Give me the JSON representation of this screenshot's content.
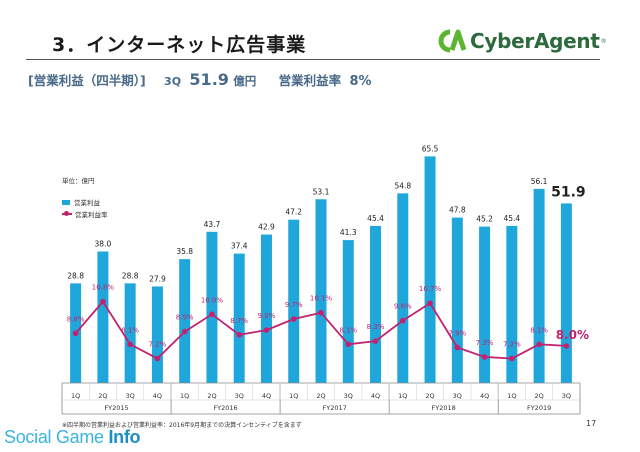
{
  "header": {
    "title": "3．インターネット広告事業",
    "logo_text": "CyberAgent",
    "logo_reg": "®"
  },
  "subheading": {
    "label": "[営業利益（四半期）]",
    "quarter": "3Q",
    "value": "51.9",
    "unit": "億円",
    "rate_label": "営業利益率",
    "rate": "8%"
  },
  "colors": {
    "bar": "#1fa7db",
    "line": "#c2226e",
    "accent_text": "#c2226e"
  },
  "chart_data": {
    "type": "bar",
    "unit_label": "単位：億円",
    "legend": [
      "営業利益",
      "営業利益率"
    ],
    "categories": [
      "1Q",
      "2Q",
      "3Q",
      "4Q",
      "1Q",
      "2Q",
      "3Q",
      "4Q",
      "1Q",
      "2Q",
      "3Q",
      "4Q",
      "1Q",
      "2Q",
      "3Q",
      "4Q",
      "1Q",
      "2Q",
      "3Q"
    ],
    "groups": [
      {
        "label": "FY2015",
        "count": 4
      },
      {
        "label": "FY2016",
        "count": 4
      },
      {
        "label": "FY2017",
        "count": 4
      },
      {
        "label": "FY2018",
        "count": 4
      },
      {
        "label": "FY2019",
        "count": 3
      }
    ],
    "series": [
      {
        "name": "営業利益",
        "type": "bar",
        "values": [
          28.8,
          38.0,
          28.8,
          27.9,
          35.8,
          43.7,
          37.4,
          42.9,
          47.2,
          53.1,
          41.3,
          45.4,
          54.8,
          65.5,
          47.8,
          45.2,
          45.4,
          56.1,
          51.9
        ],
        "labels": [
          "28.8",
          "38.0",
          "28.8",
          "27.9",
          "35.8",
          "43.7",
          "37.4",
          "42.9",
          "47.2",
          "53.1",
          "41.3",
          "45.4",
          "54.8",
          "65.5",
          "47.8",
          "45.2",
          "45.4",
          "56.1",
          "51.9"
        ]
      },
      {
        "name": "営業利益率",
        "type": "line",
        "values": [
          8.8,
          10.8,
          8.1,
          7.2,
          8.9,
          10.0,
          8.7,
          9.0,
          9.7,
          10.1,
          8.1,
          8.3,
          9.6,
          10.7,
          7.9,
          7.3,
          7.2,
          8.1,
          8.0
        ],
        "labels": [
          "8.8%",
          "10.8%",
          "8.1%",
          "7.2%",
          "8.9%",
          "10.0%",
          "8.7%",
          "9.0%",
          "9.7%",
          "10.1%",
          "8.1%",
          "8.3%",
          "9.6%",
          "10.7%",
          "7.9%",
          "7.3%",
          "7.2%",
          "8.1%",
          "8.0%"
        ]
      }
    ],
    "grid": false
  },
  "footnote": "※四半期の営業利益および営業利益率：2016年9月期までの決算インセンティブを含まず",
  "page_number": "17",
  "watermark": {
    "light": "Social Game ",
    "bold": "Info"
  }
}
